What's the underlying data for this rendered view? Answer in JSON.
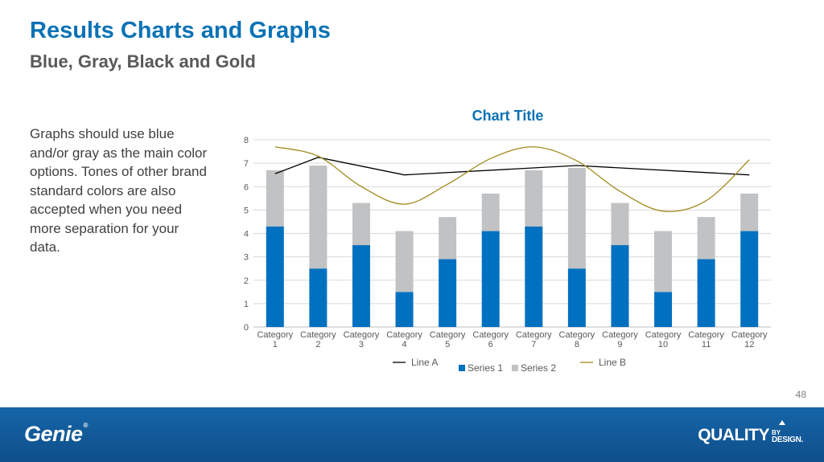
{
  "slide": {
    "title": "Results Charts and Graphs",
    "subtitle": "Blue, Gray, Black and Gold",
    "body": "Graphs should use blue and/or gray as the main color options. Tones of other brand standard colors are also accepted when you need more separation for your data.",
    "page_number": "48"
  },
  "footer": {
    "logo_left": "Genie",
    "logo_left_mark": "®",
    "logo_right_main": "QUALITY",
    "logo_right_by": "BY",
    "logo_right_design": "DESIGN."
  },
  "chart_data": {
    "type": "bar",
    "title": "Chart Title",
    "stacked": true,
    "categories": [
      "Category 1",
      "Category 2",
      "Category 3",
      "Category 4",
      "Category 5",
      "Category 6",
      "Category 7",
      "Category 8",
      "Category 9",
      "Category 10",
      "Category 11",
      "Category 12"
    ],
    "ylim": [
      0,
      8
    ],
    "yticks": [
      0,
      1,
      2,
      3,
      4,
      5,
      6,
      7,
      8
    ],
    "grid": true,
    "legend": "bottom",
    "series": [
      {
        "name": "Series 1",
        "kind": "bar",
        "color": "#0070c0",
        "values": [
          4.3,
          2.5,
          3.5,
          1.5,
          2.9,
          4.1,
          4.3,
          2.5,
          3.5,
          1.5,
          2.9,
          4.1
        ]
      },
      {
        "name": "Series 2",
        "kind": "bar",
        "color": "#c0c2c4",
        "values": [
          2.4,
          4.4,
          1.8,
          2.6,
          1.8,
          1.6,
          2.4,
          4.3,
          1.8,
          2.6,
          1.8,
          1.6
        ]
      },
      {
        "name": "Line A",
        "kind": "line",
        "color": "#000000",
        "values": [
          6.55,
          7.25,
          null,
          6.5,
          null,
          null,
          null,
          6.9,
          null,
          null,
          null,
          6.5
        ]
      },
      {
        "name": "Line B",
        "kind": "line",
        "color": "#a08a1c",
        "values": [
          7.7,
          7.3,
          6.0,
          5.25,
          6.1,
          7.2,
          7.7,
          7.1,
          5.8,
          4.95,
          5.4,
          7.15
        ]
      }
    ]
  }
}
